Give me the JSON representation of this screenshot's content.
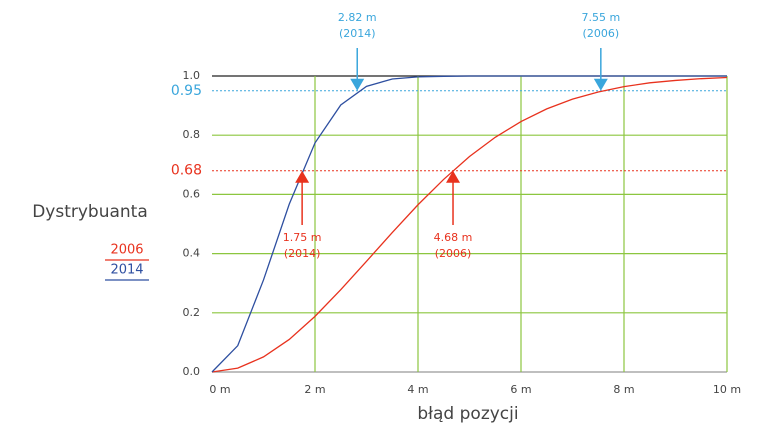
{
  "chart_data": {
    "type": "line",
    "y_label": "Dystrybuanta",
    "x_label": "błąd pozycji",
    "x": [
      0,
      0.5,
      1,
      1.5,
      2,
      2.5,
      3,
      3.5,
      4,
      4.5,
      5,
      5.5,
      6,
      6.5,
      7,
      7.5,
      8,
      8.5,
      9,
      9.5,
      10
    ],
    "series": [
      {
        "name": "2006",
        "color": "#e8321e",
        "values": [
          0,
          0.013,
          0.051,
          0.11,
          0.188,
          0.278,
          0.374,
          0.471,
          0.565,
          0.651,
          0.728,
          0.793,
          0.846,
          0.889,
          0.922,
          0.946,
          0.964,
          0.977,
          0.985,
          0.991,
          0.995
        ]
      },
      {
        "name": "2014",
        "color": "#2e4fa0",
        "values": [
          0,
          0.089,
          0.311,
          0.567,
          0.774,
          0.902,
          0.965,
          0.99,
          0.997,
          0.999,
          1,
          1,
          1,
          1,
          1,
          1,
          1,
          1,
          1,
          1,
          1
        ]
      }
    ],
    "xlim": [
      0,
      10
    ],
    "xticks": [
      {
        "value": 0,
        "label": "0 m"
      },
      {
        "value": 2,
        "label": "2 m"
      },
      {
        "value": 4,
        "label": "4 m"
      },
      {
        "value": 6,
        "label": "6 m"
      },
      {
        "value": 8,
        "label": "8 m"
      },
      {
        "value": 10,
        "label": "10 m"
      }
    ],
    "ylim": [
      0,
      1
    ],
    "yticks": [
      {
        "value": 0,
        "label": "0.0"
      },
      0.2,
      0.4,
      0.6,
      0.8,
      {
        "value": 1,
        "label": "1.0"
      }
    ],
    "grid": true,
    "grid_color": "#8cc63f",
    "reference_lines": [
      {
        "value": 0.95,
        "color": "#3aa6dc"
      },
      {
        "value": 0.68,
        "color": "#e8321e"
      }
    ],
    "annotations": [
      {
        "x": 2.82,
        "y": 0.95,
        "text": [
          "2.82 m",
          "(2014)"
        ],
        "color": "#3aa6dc",
        "direction": "down"
      },
      {
        "x": 7.55,
        "y": 0.95,
        "text": [
          "7.55 m",
          "(2006)"
        ],
        "color": "#3aa6dc",
        "direction": "down"
      },
      {
        "x": 1.75,
        "y": 0.68,
        "text": [
          "1.75 m",
          "(2014)"
        ],
        "color": "#e8321e",
        "direction": "up"
      },
      {
        "x": 4.68,
        "y": 0.68,
        "text": [
          "4.68 m",
          "(2006)"
        ],
        "color": "#e8321e",
        "direction": "up"
      }
    ]
  }
}
